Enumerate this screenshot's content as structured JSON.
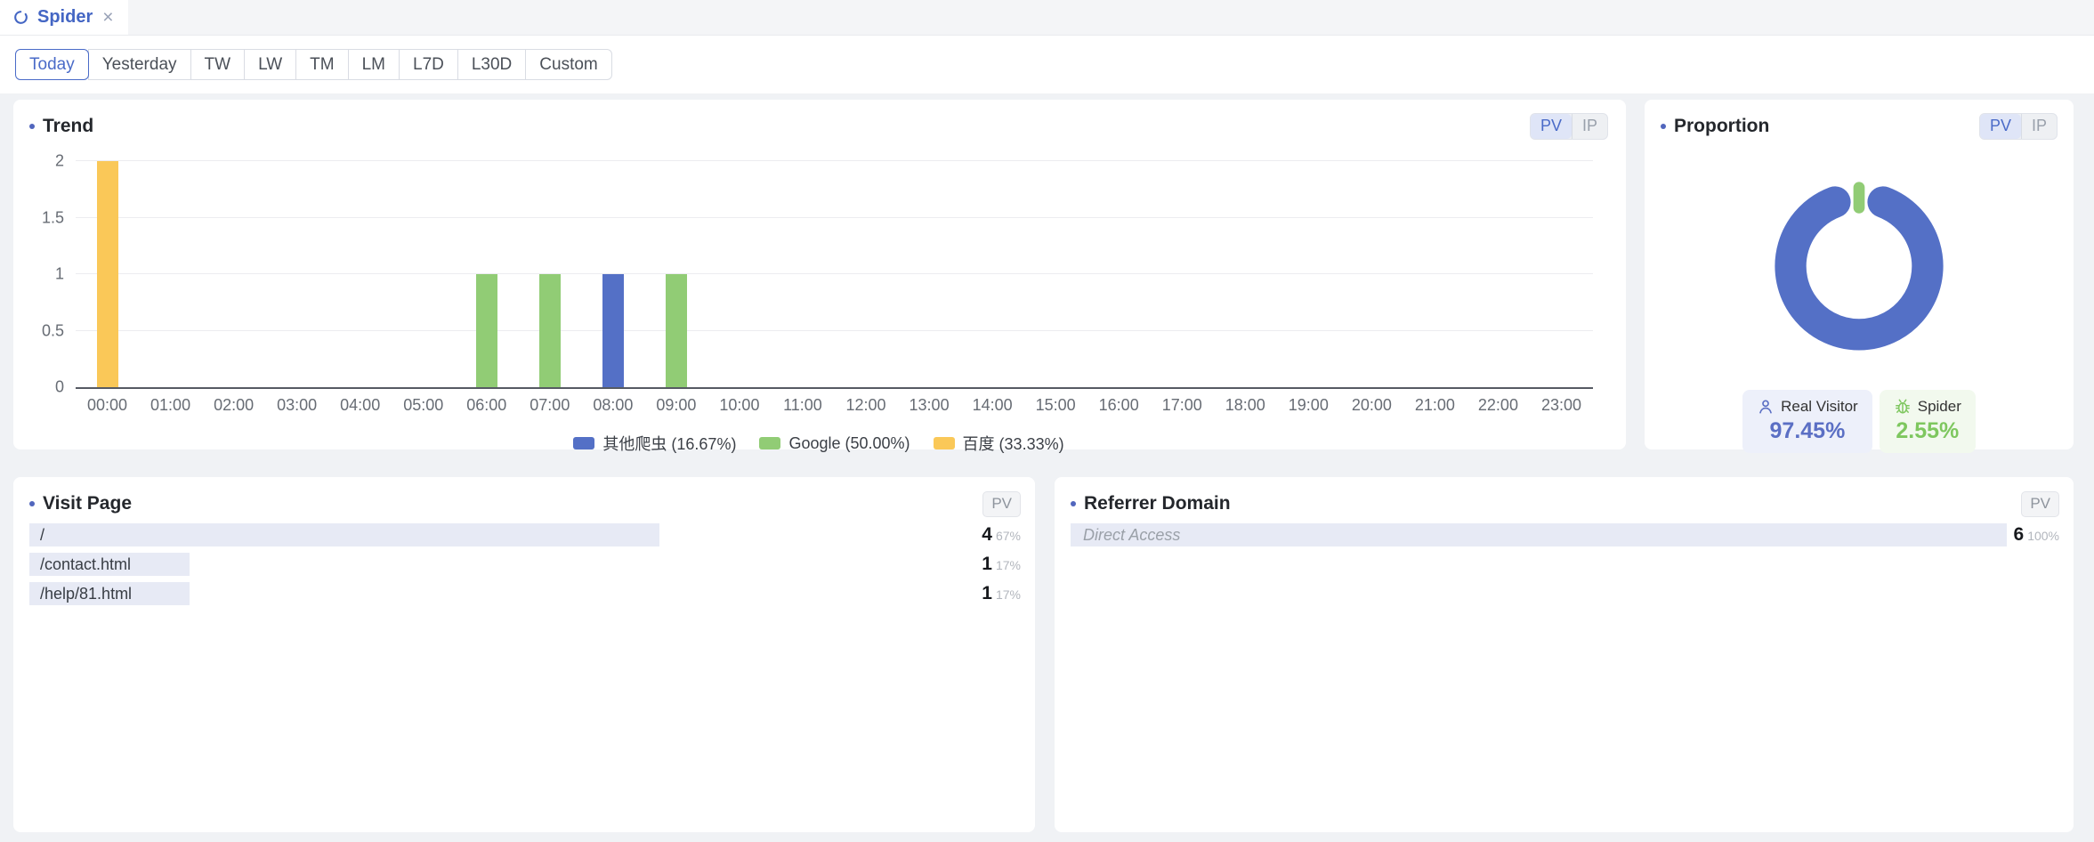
{
  "tab_bar": {
    "tab": {
      "label": "Spider",
      "refresh_icon": "circular-arrow",
      "close_icon": "×"
    }
  },
  "toolbar": {
    "ranges": [
      {
        "label": "Today",
        "active": true
      },
      {
        "label": "Yesterday",
        "active": false
      },
      {
        "label": "TW",
        "active": false
      },
      {
        "label": "LW",
        "active": false
      },
      {
        "label": "TM",
        "active": false
      },
      {
        "label": "LM",
        "active": false
      },
      {
        "label": "L7D",
        "active": false
      },
      {
        "label": "L30D",
        "active": false
      },
      {
        "label": "Custom",
        "active": false
      }
    ]
  },
  "trend": {
    "title": "Trend",
    "toggle": {
      "options": [
        "PV",
        "IP"
      ],
      "selected": "PV"
    },
    "chart_data": {
      "type": "bar",
      "x": [
        "00:00",
        "01:00",
        "02:00",
        "03:00",
        "04:00",
        "05:00",
        "06:00",
        "07:00",
        "08:00",
        "09:00",
        "10:00",
        "11:00",
        "12:00",
        "13:00",
        "14:00",
        "15:00",
        "16:00",
        "17:00",
        "18:00",
        "19:00",
        "20:00",
        "21:00",
        "22:00",
        "23:00"
      ],
      "ylim": [
        0,
        2
      ],
      "yticks": [
        0,
        0.5,
        1,
        1.5,
        2
      ],
      "grid": true,
      "legend_position": "bottom",
      "series": [
        {
          "name": "其他爬虫 (16.67%)",
          "color": "#5470c6",
          "values": [
            0,
            0,
            0,
            0,
            0,
            0,
            0,
            0,
            1,
            0,
            0,
            0,
            0,
            0,
            0,
            0,
            0,
            0,
            0,
            0,
            0,
            0,
            0,
            0
          ]
        },
        {
          "name": "Google (50.00%)",
          "color": "#91cc75",
          "values": [
            0,
            0,
            0,
            0,
            0,
            0,
            1,
            1,
            0,
            1,
            0,
            0,
            0,
            0,
            0,
            0,
            0,
            0,
            0,
            0,
            0,
            0,
            0,
            0
          ]
        },
        {
          "name": "百度 (33.33%)",
          "color": "#fac858",
          "values": [
            2,
            0,
            0,
            0,
            0,
            0,
            0,
            0,
            0,
            0,
            0,
            0,
            0,
            0,
            0,
            0,
            0,
            0,
            0,
            0,
            0,
            0,
            0,
            0
          ]
        }
      ]
    }
  },
  "proportion": {
    "title": "Proportion",
    "toggle": {
      "options": [
        "PV",
        "IP"
      ],
      "selected": "PV"
    },
    "chart_data": {
      "type": "pie",
      "style": "donut",
      "slices": [
        {
          "label": "Real Visitor",
          "value": 97.45,
          "color": "#5470c6"
        },
        {
          "label": "Spider",
          "value": 2.55,
          "color": "#91cc75"
        }
      ]
    },
    "stats": [
      {
        "label": "Real Visitor",
        "value": "97.45%",
        "icon": "person",
        "color": "#5b6fc4"
      },
      {
        "label": "Spider",
        "value": "2.55%",
        "icon": "bug",
        "color": "#7ec75f"
      }
    ]
  },
  "visit_page": {
    "title": "Visit Page",
    "badge": "PV",
    "rows": [
      {
        "label": "/",
        "value": "4",
        "pct": "67%",
        "bar_pct": 67
      },
      {
        "label": "/contact.html",
        "value": "1",
        "pct": "17%",
        "bar_pct": 17
      },
      {
        "label": "/help/81.html",
        "value": "1",
        "pct": "17%",
        "bar_pct": 17
      }
    ]
  },
  "referrer_domain": {
    "title": "Referrer Domain",
    "badge": "PV",
    "rows": [
      {
        "label": "Direct Access",
        "value": "6",
        "pct": "100%",
        "bar_pct": 100
      }
    ]
  },
  "colors": {
    "accent_blue": "#4a6bc8",
    "chart_blue": "#5470c6",
    "chart_green": "#91cc75",
    "chart_yellow": "#fac858",
    "list_bar_bg": "#e7eaf5",
    "page_bg": "#f0f2f5"
  }
}
